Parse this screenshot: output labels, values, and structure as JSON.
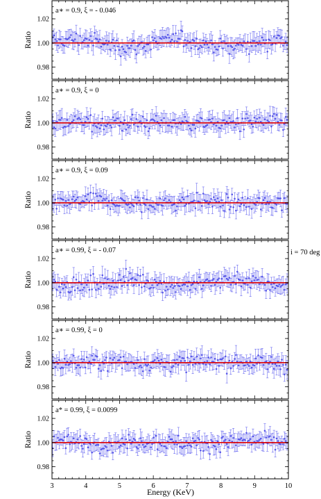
{
  "chart_data": {
    "type": "scatter",
    "xlabel": "Energy (KeV)",
    "ylabel": "Ratio",
    "xlim": [
      3,
      10
    ],
    "ylim": [
      0.97,
      1.035
    ],
    "x_ticks": [
      "3",
      "4",
      "5",
      "6",
      "7",
      "8",
      "9",
      "10"
    ],
    "y_ticks": [
      "0.98",
      "1.00",
      "1.02"
    ],
    "y_tick_values": [
      0.98,
      1.0,
      1.02
    ],
    "reference_line": 1.0,
    "side_label": "i = 70 deg",
    "colors": {
      "points": "#5656e8",
      "reference_line": "#e00000"
    },
    "points_per_panel": 180,
    "panels": [
      {
        "label": "a∗ = 0.9, ξ = - 0.046",
        "noise": 0.0055,
        "ripple": 0.003
      },
      {
        "label": "a∗ = 0.9, ξ = 0",
        "noise": 0.0055,
        "ripple": 0.0005
      },
      {
        "label": "a∗ = 0.9, ξ = 0.09",
        "noise": 0.0055,
        "ripple": -0.0015
      },
      {
        "label": "a∗ = 0.99, ξ = - 0.07",
        "noise": 0.0055,
        "ripple": 0.0025
      },
      {
        "label": "a∗ = 0.99, ξ = 0",
        "noise": 0.0055,
        "ripple": 0.0005
      },
      {
        "label": "a* = 0.99, ξ = 0.0099",
        "noise": 0.0055,
        "ripple": -0.001
      }
    ]
  }
}
